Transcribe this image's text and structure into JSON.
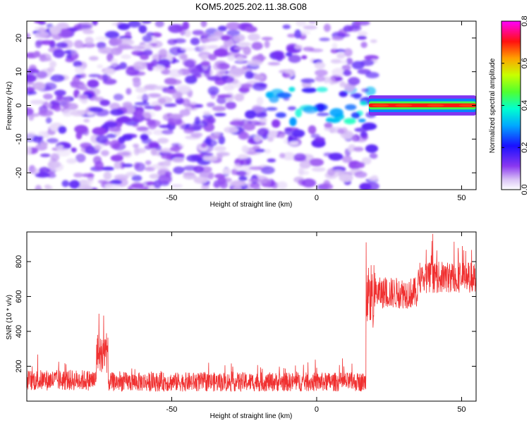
{
  "title": "KOM5.2025.202.11.38.G08",
  "chart_data": [
    {
      "type": "heatmap",
      "xlabel": "Height of straight line (km)",
      "ylabel": "Frequency (Hz)",
      "xlim": [
        -100,
        55
      ],
      "ylim": [
        -25,
        25
      ],
      "x_ticks": [
        -50,
        0,
        50
      ],
      "y_ticks": [
        -20,
        -10,
        0,
        10,
        20
      ],
      "grid": false,
      "colorbar": {
        "label": "Normalized spectral amplitude",
        "range": [
          0.0,
          0.8
        ],
        "ticks": [
          0.0,
          0.2,
          0.4,
          0.6,
          0.8
        ],
        "colors": [
          "#ffffff",
          "#c8a8f0",
          "#7a28e8",
          "#2010ff",
          "#00a0ff",
          "#00ffd0",
          "#40ff40",
          "#c8ff00",
          "#ffa000",
          "#ff2000",
          "#ff00ff"
        ]
      },
      "regions": [
        {
          "x_range": [
            -100,
            -18
          ],
          "description_level": 0.15
        },
        {
          "x_range": [
            -18,
            18
          ],
          "description_level": 0.3
        },
        {
          "x_range": [
            18,
            55
          ],
          "center_frequency": 0,
          "level": 0.8
        }
      ]
    },
    {
      "type": "line",
      "xlabel": "Height of straight line (km)",
      "ylabel": "SNR (10 * v/v)",
      "xlim": [
        -100,
        55
      ],
      "ylim": [
        0,
        970
      ],
      "x_ticks": [
        -50,
        0,
        50
      ],
      "y_ticks": [
        200,
        400,
        600,
        800
      ],
      "grid": false,
      "color": "#f03030",
      "segments": [
        {
          "x_range": [
            -100,
            -76
          ],
          "mean": 120,
          "noise": 60
        },
        {
          "x_range": [
            -76,
            -72
          ],
          "mean": 280,
          "noise": 120,
          "peak": 520
        },
        {
          "x_range": [
            -72,
            17
          ],
          "mean": 110,
          "noise": 55
        },
        {
          "x_range": [
            17,
            20
          ],
          "mean": 600,
          "noise": 200,
          "peak": 960
        },
        {
          "x_range": [
            20,
            35
          ],
          "mean": 620,
          "noise": 90
        },
        {
          "x_range": [
            35,
            55
          ],
          "mean": 710,
          "noise": 90,
          "peak": 960
        }
      ]
    }
  ]
}
